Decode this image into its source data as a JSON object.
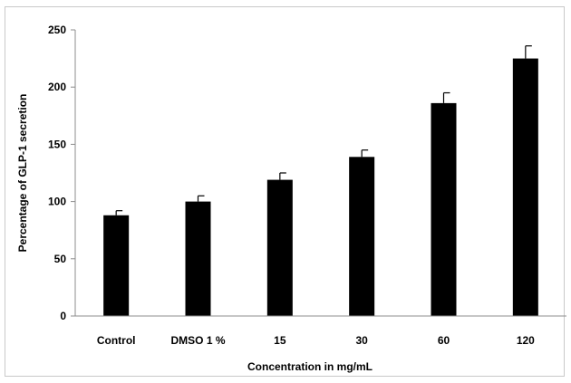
{
  "chart_data": {
    "type": "bar",
    "title": "",
    "xlabel": "Concentration in mg/mL",
    "ylabel": "Percentage of GLP-1 secretion",
    "categories": [
      "Control",
      "DMSO 1 %",
      "15",
      "30",
      "60",
      "120"
    ],
    "values": [
      88,
      100,
      119,
      139,
      186,
      225
    ],
    "errors": [
      4,
      5,
      6,
      6,
      9,
      11
    ],
    "ylim": [
      0,
      250
    ],
    "yticks": [
      0,
      50,
      100,
      150,
      200,
      250
    ],
    "grid": false,
    "legend": "none",
    "bar_color": "#000000"
  }
}
